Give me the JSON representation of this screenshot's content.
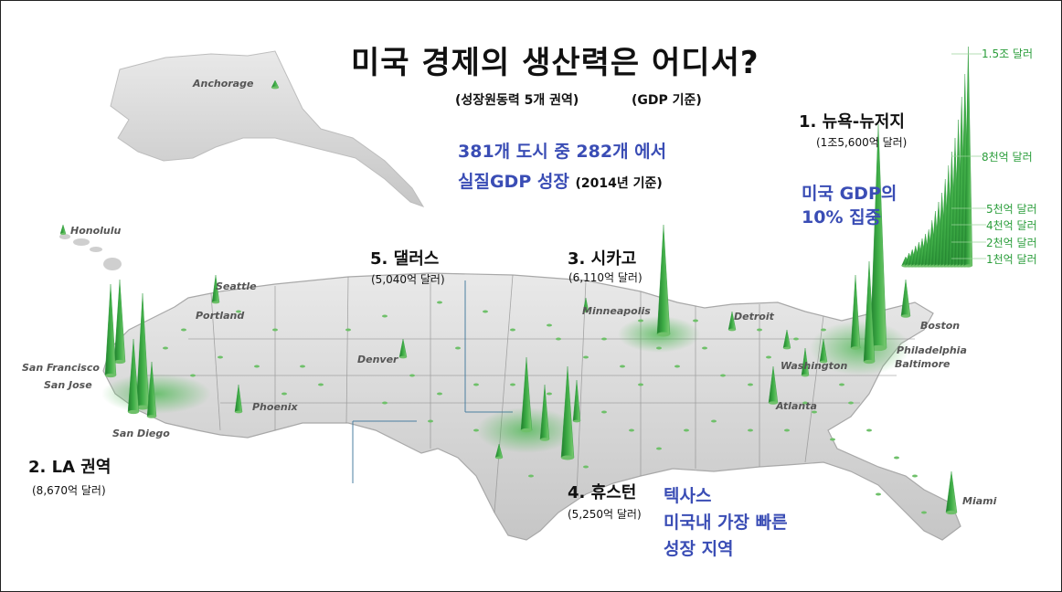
{
  "header": {
    "title": "미국 경제의 생산력은 어디서?",
    "subtitle": "(성장원동력 5개 권역)",
    "basis": "(GDP 기준)"
  },
  "stats": {
    "line1": "381개 도시 중   282개 에서",
    "line2": "실질GDP 성장",
    "line2_note": "(2014년 기준)",
    "share_line1": "미국  GDP의",
    "share_line2": "10%  집중"
  },
  "regions": [
    {
      "rank_name": "1. 뉴욕-뉴저지",
      "value": "(1조5,600억 달러)"
    },
    {
      "rank_name": "2. LA 권역",
      "value": "(8,670억 달러)"
    },
    {
      "rank_name": "3. 시카고",
      "value": "(6,110억 달러)"
    },
    {
      "rank_name": "4. 휴스턴",
      "value": "(5,250억 달러)"
    },
    {
      "rank_name": "5. 댈러스",
      "value": "(5,040억 달러)"
    }
  ],
  "texas_note": {
    "line1": "텍사스",
    "line2": "미국내 가장 빠른",
    "line3": "성장 지역"
  },
  "legend": {
    "labels": [
      "1.5조 달러",
      "8천억 달러",
      "5천억 달러",
      "4천억 달러",
      "2천억 달러",
      "1천억 달러"
    ]
  },
  "cities": {
    "anchorage": "Anchorage",
    "honolulu": "Honolulu",
    "seattle": "Seattle",
    "portland": "Portland",
    "san_francisco": "San Francisco",
    "san_jose": "San Jose",
    "san_diego": "San Diego",
    "phoenix": "Phoenix",
    "denver": "Denver",
    "minneapolis": "Minneapolis",
    "detroit": "Detroit",
    "boston": "Boston",
    "philadelphia": "Philadelphia",
    "baltimore": "Baltimore",
    "washington": "Washington",
    "atlanta": "Atlanta",
    "miami": "Miami"
  },
  "colors": {
    "spike": "#2f9a3c",
    "spike_light": "#6fc06a",
    "glow": "#58c45c",
    "land": "#d8d8d8",
    "title_blue": "#3a4db5",
    "legend_green": "#2a9d3a"
  }
}
